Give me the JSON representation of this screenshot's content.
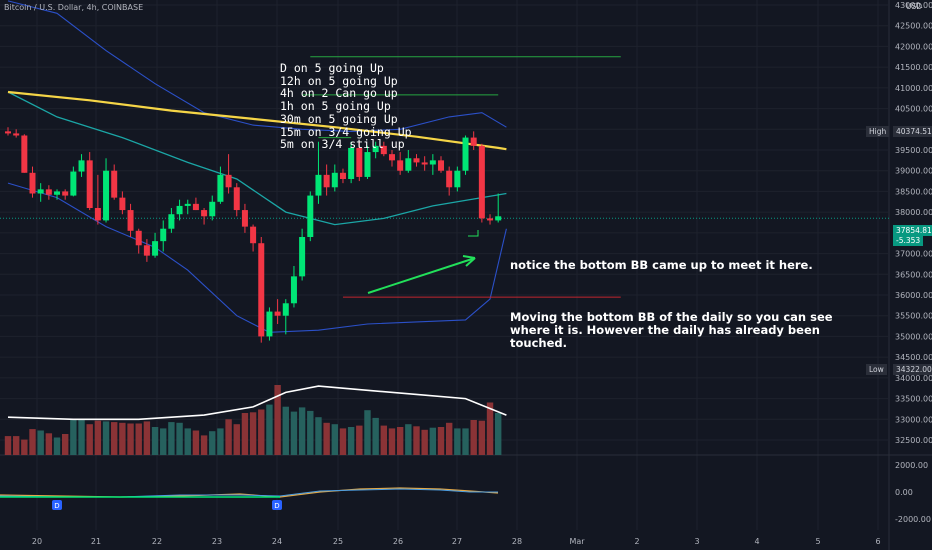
{
  "header": {
    "title": "Bitcoin / U.S. Dollar, 4h, COINBASE"
  },
  "axis": {
    "currency_label": "USD"
  },
  "notes": [
    "D on 5 going Up",
    "12h on 5 going Up",
    "4h on 2   Can go up",
    "1h on 5 going Up",
    "30m on 5 going Up",
    "15m on 3/4 going Up",
    "5m on 3/4 still up"
  ],
  "annotations": {
    "bb_note": "notice the bottom BB came up to meet it here.",
    "daily_note": "Moving the bottom BB of the daily so you can see where it is.  However the daily has already been touched."
  },
  "tags": {
    "high_label": "High",
    "high_value": "40374.51",
    "low_label": "Low",
    "low_value": "34322.00",
    "last_price": "37854.81",
    "last_change": "-5.353"
  },
  "colors": {
    "background": "#131722",
    "up": "#00e676",
    "down": "#f23645",
    "ma_yellow": "#f5d547",
    "bb_blue": "#2b50c8",
    "basis_teal": "#1ba6a6",
    "vol_up": "#26615e",
    "vol_down": "#8a3336",
    "green_line": "#26a641",
    "red_line": "#c2252f"
  },
  "chart_data": {
    "type": "candlestick",
    "y_range": [
      32000,
      43000
    ],
    "y_ticks": [
      "43000.00",
      "42500.00",
      "42000.00",
      "41500.00",
      "41000.00",
      "40500.00",
      "40000.00",
      "39500.00",
      "39000.00",
      "38500.00",
      "38000.00",
      "37500.00",
      "37000.00",
      "36500.00",
      "36000.00",
      "35500.00",
      "35000.00",
      "34500.00",
      "34000.00",
      "33500.00",
      "33000.00",
      "32500.00"
    ],
    "x_ticks": [
      "20",
      "21",
      "22",
      "23",
      "24",
      "25",
      "26",
      "27",
      "28",
      "Mar",
      "2",
      "3",
      "4",
      "5",
      "6"
    ],
    "osc_ticks": [
      "2000.00",
      "0.00",
      "-2000.00"
    ],
    "day_markers": [
      "D",
      "D"
    ],
    "candles": [
      [
        39950,
        40050,
        39850,
        39900
      ],
      [
        39900,
        40000,
        39800,
        39850
      ],
      [
        39850,
        39880,
        38950,
        38950
      ],
      [
        38950,
        39100,
        38350,
        38450
      ],
      [
        38450,
        38700,
        38250,
        38550
      ],
      [
        38550,
        38650,
        38300,
        38420
      ],
      [
        38420,
        38550,
        38300,
        38500
      ],
      [
        38500,
        38550,
        38300,
        38400
      ],
      [
        38400,
        39100,
        38380,
        38980
      ],
      [
        38980,
        39400,
        38850,
        39250
      ],
      [
        39250,
        39450,
        38050,
        38100
      ],
      [
        38100,
        38900,
        37700,
        37800
      ],
      [
        37800,
        39300,
        37750,
        39000
      ],
      [
        39000,
        39150,
        38300,
        38350
      ],
      [
        38350,
        38500,
        37950,
        38050
      ],
      [
        38050,
        38200,
        37400,
        37550
      ],
      [
        37550,
        37600,
        37000,
        37200
      ],
      [
        37200,
        37350,
        36800,
        36950
      ],
      [
        36950,
        37500,
        36900,
        37300
      ],
      [
        37300,
        37800,
        37050,
        37600
      ],
      [
        37600,
        38100,
        37500,
        37950
      ],
      [
        37950,
        38300,
        37800,
        38150
      ],
      [
        38150,
        38300,
        37950,
        38200
      ],
      [
        38200,
        38350,
        38050,
        38050
      ],
      [
        38050,
        38100,
        37700,
        37900
      ],
      [
        37900,
        38400,
        37800,
        38250
      ],
      [
        38250,
        39100,
        38200,
        38900
      ],
      [
        38900,
        39400,
        38450,
        38600
      ],
      [
        38600,
        38700,
        37900,
        38050
      ],
      [
        38050,
        38200,
        37500,
        37650
      ],
      [
        37650,
        37700,
        37050,
        37250
      ],
      [
        37250,
        37400,
        34850,
        35000
      ],
      [
        35000,
        35700,
        34900,
        35600
      ],
      [
        35600,
        35900,
        35300,
        35500
      ],
      [
        35500,
        35900,
        35050,
        35800
      ],
      [
        35800,
        36700,
        35700,
        36450
      ],
      [
        36450,
        37600,
        36350,
        37400
      ],
      [
        37400,
        38500,
        37300,
        38400
      ],
      [
        38400,
        39700,
        38200,
        38900
      ],
      [
        38900,
        39150,
        38400,
        38600
      ],
      [
        38600,
        39150,
        38500,
        38950
      ],
      [
        38950,
        39050,
        38700,
        38800
      ],
      [
        38800,
        39700,
        38700,
        39550
      ],
      [
        39550,
        39700,
        38750,
        38850
      ],
      [
        38850,
        39600,
        38800,
        39450
      ],
      [
        39450,
        39700,
        39300,
        39600
      ],
      [
        39600,
        39700,
        39350,
        39400
      ],
      [
        39400,
        39500,
        39100,
        39250
      ],
      [
        39250,
        39450,
        38900,
        39000
      ],
      [
        39000,
        39500,
        38950,
        39300
      ],
      [
        39300,
        39400,
        39100,
        39200
      ],
      [
        39200,
        39350,
        39000,
        39150
      ],
      [
        39150,
        39400,
        38900,
        39250
      ],
      [
        39250,
        39350,
        38950,
        39000
      ],
      [
        39000,
        39100,
        38400,
        38600
      ],
      [
        38600,
        39100,
        38500,
        39000
      ],
      [
        39000,
        39850,
        38900,
        39800
      ],
      [
        39800,
        39950,
        39500,
        39600
      ],
      [
        39600,
        39650,
        37750,
        37850
      ],
      [
        37850,
        37950,
        37700,
        37800
      ],
      [
        37800,
        38450,
        37750,
        37900
      ]
    ],
    "volume": [
      1,
      1,
      1,
      1,
      1,
      1,
      1,
      1,
      1,
      1,
      1,
      1,
      1,
      1,
      1,
      1,
      1,
      1,
      1,
      1,
      1,
      1,
      1,
      1,
      1,
      1,
      1,
      1,
      1,
      1,
      1,
      1,
      1,
      1,
      1,
      1,
      1,
      1,
      1,
      1,
      1,
      1,
      1,
      1,
      1,
      1,
      1,
      1,
      1,
      1,
      1,
      1,
      1,
      1,
      1,
      1,
      1,
      1,
      1,
      1,
      1
    ],
    "volume_values": [
      27,
      27,
      22,
      37,
      35,
      31,
      25,
      30,
      52,
      50,
      44,
      49,
      48,
      47,
      46,
      45,
      45,
      48,
      40,
      38,
      47,
      46,
      38,
      35,
      28,
      34,
      38,
      51,
      44,
      60,
      61,
      65,
      72,
      100,
      69,
      62,
      68,
      63,
      54,
      46,
      44,
      38,
      40,
      42,
      64,
      53,
      42,
      38,
      40,
      44,
      41,
      36,
      39,
      40,
      46,
      38,
      38,
      50,
      49,
      75,
      60
    ],
    "ma_yellow": [
      [
        0,
        40900
      ],
      [
        10,
        40700
      ],
      [
        20,
        40450
      ],
      [
        30,
        40250
      ],
      [
        40,
        40050
      ],
      [
        50,
        39820
      ],
      [
        60,
        39550
      ],
      [
        61,
        39520
      ]
    ],
    "bb_basis": [
      [
        0,
        40900
      ],
      [
        6,
        40300
      ],
      [
        14,
        39800
      ],
      [
        22,
        39200
      ],
      [
        28,
        38800
      ],
      [
        34,
        38000
      ],
      [
        40,
        37700
      ],
      [
        46,
        37850
      ],
      [
        52,
        38150
      ],
      [
        58,
        38350
      ],
      [
        61,
        38450
      ]
    ],
    "bb_upper": [
      [
        0,
        43100
      ],
      [
        6,
        42800
      ],
      [
        12,
        41900
      ],
      [
        18,
        41100
      ],
      [
        24,
        40400
      ],
      [
        30,
        40100
      ],
      [
        36,
        40000
      ],
      [
        42,
        39950
      ],
      [
        48,
        40000
      ],
      [
        54,
        40300
      ],
      [
        58,
        40400
      ],
      [
        61,
        40050
      ]
    ],
    "bb_lower": [
      [
        0,
        38700
      ],
      [
        6,
        38350
      ],
      [
        12,
        37650
      ],
      [
        18,
        37150
      ],
      [
        22,
        36600
      ],
      [
        28,
        35500
      ],
      [
        32,
        35100
      ],
      [
        38,
        35150
      ],
      [
        44,
        35300
      ],
      [
        50,
        35350
      ],
      [
        56,
        35400
      ],
      [
        59,
        35900
      ],
      [
        61,
        37600
      ]
    ],
    "vol_ma": [
      [
        0,
        33050
      ],
      [
        8,
        33000
      ],
      [
        16,
        33000
      ],
      [
        24,
        33100
      ],
      [
        30,
        33300
      ],
      [
        34,
        33650
      ],
      [
        38,
        33800
      ],
      [
        44,
        33700
      ],
      [
        50,
        33600
      ],
      [
        56,
        33500
      ],
      [
        61,
        33100
      ]
    ],
    "hlines": [
      {
        "price": 41750,
        "from": 37,
        "to": 75,
        "color": "green"
      },
      {
        "price": 40830,
        "from": 36,
        "to": 60,
        "color": "green"
      },
      {
        "price": 39800,
        "from": 38,
        "to": 42,
        "color": "green"
      },
      {
        "price": 35950,
        "from": 41,
        "to": 75,
        "color": "red"
      }
    ]
  }
}
